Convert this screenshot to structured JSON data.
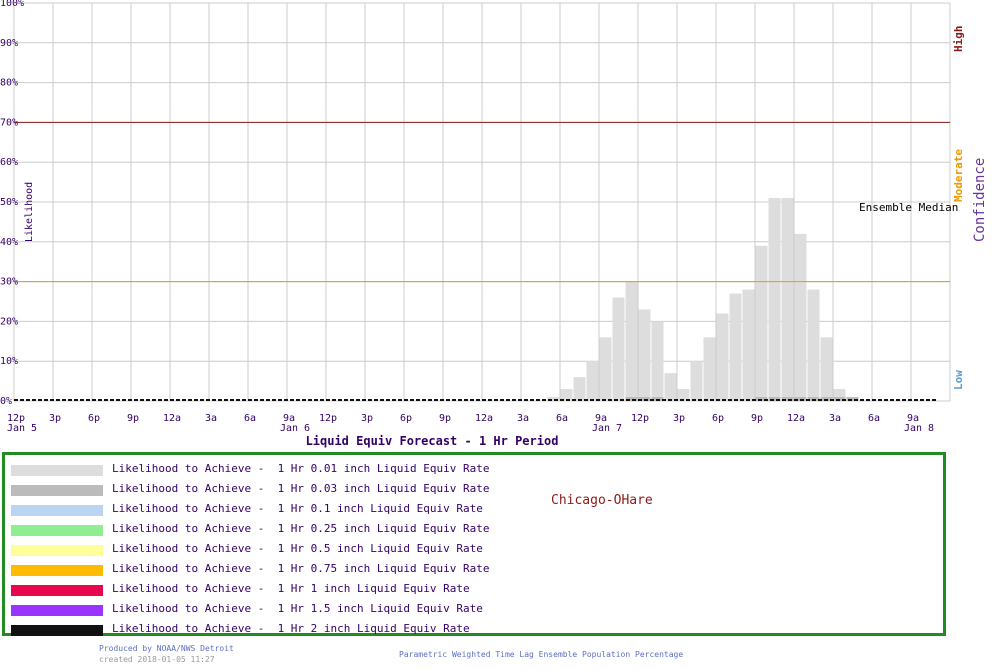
{
  "chart_data": {
    "type": "bar",
    "title": "Liquid Equiv Forecast -  1 Hr Period",
    "ylabel": "Likelihood",
    "y_ticks": [
      "0%",
      "10%",
      "20%",
      "30%",
      "40%",
      "50%",
      "60%",
      "70%",
      "80%",
      "90%",
      "100%"
    ],
    "ylim": [
      0,
      100
    ],
    "x_ticks": [
      "12p",
      "3p",
      "6p",
      "9p",
      "12a",
      "3a",
      "6a",
      "9a",
      "12p",
      "3p",
      "6p",
      "9p",
      "12a",
      "3a",
      "6a",
      "9a",
      "12p",
      "3p",
      "6p",
      "9p",
      "12a",
      "3a",
      "6a",
      "9a"
    ],
    "date_labels": [
      {
        "label": "Jan  5",
        "tick": 0
      },
      {
        "label": "Jan  6",
        "tick": 7
      },
      {
        "label": "Jan  7",
        "tick": 15
      },
      {
        "label": "Jan  8",
        "tick": 23
      }
    ],
    "hours_per_bar": 1,
    "series": [
      {
        "name": "Likelihood to Achieve -  1 Hr 0.01 inch Liquid Equiv Rate",
        "color": "#dddddd",
        "start_hour": 41,
        "values": [
          1,
          3,
          6,
          10,
          16,
          26,
          30,
          23,
          20,
          7,
          3,
          10,
          16,
          22,
          27,
          28,
          39,
          51,
          51,
          42,
          28,
          16,
          3,
          1,
          0,
          0,
          0,
          0,
          0,
          0,
          0,
          0
        ]
      },
      {
        "name": "Likelihood to Achieve -  1 Hr 0.03 inch Liquid Equiv Rate",
        "color": "#bbbbbb",
        "start_hour": 47,
        "values": [
          1,
          1,
          1,
          0,
          0,
          0,
          0,
          0,
          0,
          0,
          1,
          1,
          1,
          1,
          1,
          1,
          1,
          1
        ]
      },
      {
        "name": "Likelihood to Achieve -  1 Hr 0.1 inch Liquid Equiv Rate",
        "color": "#bbd4f2",
        "values": []
      },
      {
        "name": "Likelihood to Achieve -  1 Hr 0.25 inch Liquid Equiv Rate",
        "color": "#90ee90",
        "values": []
      },
      {
        "name": "Likelihood to Achieve -  1 Hr 0.5 inch Liquid Equiv Rate",
        "color": "#ffff99",
        "values": []
      },
      {
        "name": "Likelihood to Achieve -  1 Hr 0.75 inch Liquid Equiv Rate",
        "color": "#ffbb00",
        "values": []
      },
      {
        "name": "Likelihood to Achieve -  1 Hr 1 inch Liquid Equiv Rate",
        "color": "#e8064e",
        "values": []
      },
      {
        "name": "Likelihood to Achieve -  1 Hr 1.5 inch Liquid Equiv Rate",
        "color": "#9933ff",
        "values": []
      },
      {
        "name": "Likelihood to Achieve -  1 Hr 2 inch Liquid Equiv Rate",
        "color": "#111111",
        "values": []
      }
    ],
    "reference_lines": [
      {
        "value": 70,
        "color": "#8b1a1a"
      },
      {
        "value": 30,
        "color": "#ee9900"
      }
    ],
    "ensemble_median_label": "Ensemble Median",
    "confidence": {
      "label": "Confidence",
      "high": "High",
      "moderate": "Moderate",
      "low": "Low",
      "high_color": "#8b1a1a",
      "moderate_color": "#ee9900",
      "low_color": "#5b9bd5",
      "label_color": "#663399"
    },
    "grid": true,
    "legend": "bottom"
  },
  "station": "Chicago-OHare",
  "footer": {
    "produced_by": "Produced by NOAA/NWS Detroit",
    "created": "created 2018-01-05 11:27",
    "center": "Parametric Weighted Time Lag Ensemble Population Percentage"
  }
}
